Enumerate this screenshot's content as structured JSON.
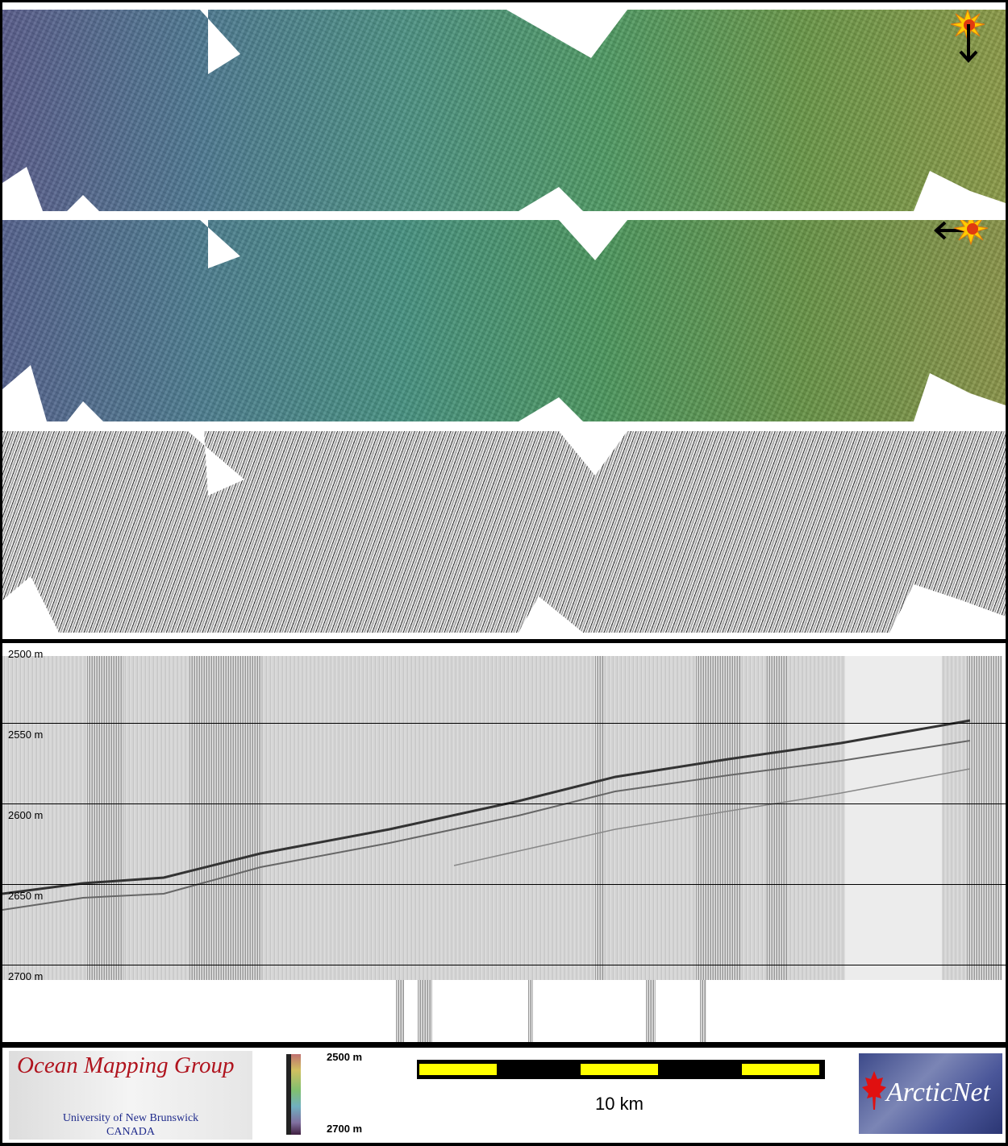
{
  "panels": [
    {
      "name": "shaded-bathymetry-sun-north",
      "sun_direction": "north"
    },
    {
      "name": "shaded-bathymetry-sun-east",
      "sun_direction": "east"
    },
    {
      "name": "sidescan-backscatter"
    }
  ],
  "profile": {
    "depth_labels": [
      "2500 m",
      "2550 m",
      "2600 m",
      "2650 m",
      "2700 m"
    ]
  },
  "legend": {
    "omg_title": "Ocean Mapping Group",
    "omg_university": "University of New Brunswick",
    "omg_country": "CANADA",
    "colorbar_top": "2500 m",
    "colorbar_bottom": "2700 m",
    "scale_label": "10 km",
    "scale_colors": [
      "#ffff00",
      "#000000"
    ],
    "arcticnet_logo": "ArcticNet"
  },
  "colors": {
    "sun": "#ffcc00",
    "sun_core": "#e03a10",
    "arrow": "#000000"
  }
}
